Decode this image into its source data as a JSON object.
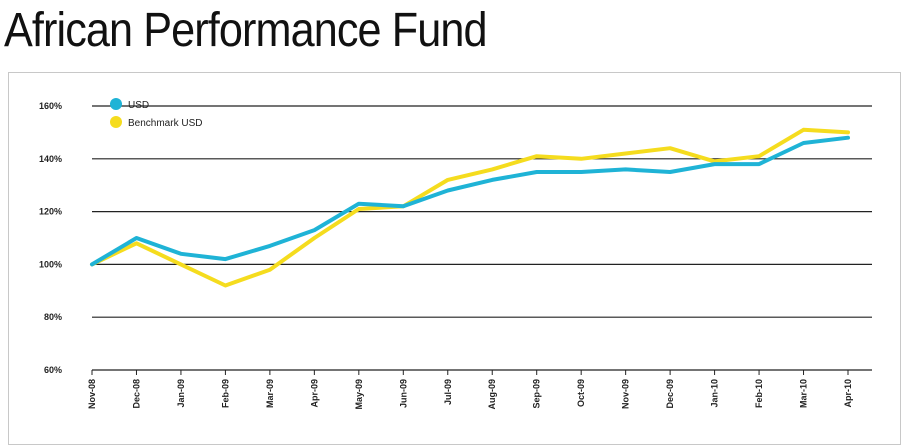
{
  "title": "African Performance Fund",
  "colors": {
    "usd": "#1fb3d6",
    "benchmark": "#f5dc1e",
    "grid": "#222222"
  },
  "chart_data": {
    "type": "line",
    "title": "African Performance Fund",
    "xlabel": "",
    "ylabel": "",
    "x": [
      "Nov-08",
      "Dec-08",
      "Jan-09",
      "Feb-09",
      "Mar-09",
      "Apr-09",
      "May-09",
      "Jun-09",
      "Jul-09",
      "Aug-09",
      "Sep-09",
      "Oct-09",
      "Nov-09",
      "Dec-09",
      "Jan-10",
      "Feb-10",
      "Mar-10",
      "Apr-10"
    ],
    "ylim": [
      60,
      160
    ],
    "yticks": [
      60,
      80,
      100,
      120,
      140,
      160
    ],
    "ytick_labels": [
      "60%",
      "80%",
      "100%",
      "120%",
      "140%",
      "160%"
    ],
    "grid": true,
    "legend_position": "top-left",
    "series": [
      {
        "name": "USD",
        "color": "#1fb3d6",
        "values": [
          100,
          110,
          104,
          102,
          107,
          113,
          123,
          122,
          128,
          132,
          135,
          135,
          136,
          135,
          138,
          138,
          146,
          148
        ]
      },
      {
        "name": "Benchmark USD",
        "color": "#f5dc1e",
        "values": [
          100,
          108,
          100,
          92,
          98,
          110,
          121,
          122,
          132,
          136,
          141,
          140,
          142,
          144,
          139,
          141,
          151,
          150
        ]
      }
    ]
  }
}
